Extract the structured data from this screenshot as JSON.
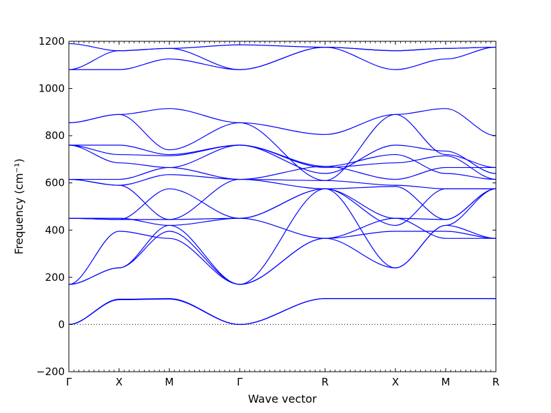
{
  "chart_data": {
    "type": "line",
    "xlabel": "Wave vector",
    "ylabel": "Frequency (cm⁻¹)",
    "ylim": [
      -200,
      1200
    ],
    "yticks": [
      -200,
      0,
      200,
      400,
      600,
      800,
      1000,
      1200
    ],
    "ytick_labels": [
      "−200",
      "0",
      "200",
      "400",
      "600",
      "800",
      "1000",
      "1200"
    ],
    "xlim": [
      0,
      8.5
    ],
    "xticks": [
      {
        "x": 0,
        "label": "Γ"
      },
      {
        "x": 1,
        "label": "X"
      },
      {
        "x": 2,
        "label": "M"
      },
      {
        "x": 3.4,
        "label": "Γ"
      },
      {
        "x": 5.1,
        "label": "R"
      },
      {
        "x": 6.5,
        "label": "X"
      },
      {
        "x": 7.5,
        "label": "M"
      },
      {
        "x": 8.5,
        "label": "R"
      }
    ],
    "zero_line": true,
    "line_color": "#0000ff",
    "series": [
      {
        "x": [
          0,
          1,
          2,
          3.4,
          5.1,
          6.5,
          7.5,
          8.5
        ],
        "values": [
          0,
          107,
          110,
          0,
          110,
          110,
          110,
          110
        ]
      },
      {
        "x": [
          0,
          1,
          2,
          3.4,
          5.1,
          6.5,
          7.5,
          8.5
        ],
        "values": [
          0,
          105,
          108,
          0,
          110,
          110,
          110,
          110
        ]
      },
      {
        "x": [
          0,
          1,
          2,
          3.4,
          5.1,
          6.5,
          7.5,
          8.5
        ],
        "values": [
          0,
          107,
          108,
          0,
          110,
          110,
          110,
          110
        ]
      },
      {
        "x": [
          0,
          1,
          2,
          3.4,
          5.1,
          6.5,
          7.5,
          8.5
        ],
        "values": [
          170,
          240,
          395,
          170,
          365,
          395,
          395,
          365
        ]
      },
      {
        "x": [
          0,
          1,
          2,
          3.4,
          5.1,
          6.5,
          7.5,
          8.5
        ],
        "values": [
          170,
          395,
          365,
          170,
          365,
          240,
          420,
          365
        ]
      },
      {
        "x": [
          0,
          1,
          2,
          3.4,
          5.1,
          6.5,
          7.5,
          8.5
        ],
        "values": [
          170,
          240,
          420,
          170,
          575,
          240,
          420,
          575
        ]
      },
      {
        "x": [
          0,
          1,
          2,
          3.4,
          5.1,
          6.5,
          7.5,
          8.5
        ],
        "values": [
          450,
          450,
          420,
          450,
          365,
          450,
          365,
          365
        ]
      },
      {
        "x": [
          0,
          1,
          2,
          3.4,
          5.1,
          6.5,
          7.5,
          8.5
        ],
        "values": [
          450,
          445,
          445,
          450,
          575,
          450,
          445,
          575
        ]
      },
      {
        "x": [
          0,
          1,
          2,
          3.4,
          5.1,
          6.5,
          7.5,
          8.5
        ],
        "values": [
          450,
          445,
          575,
          450,
          575,
          585,
          445,
          575
        ]
      },
      {
        "x": [
          0,
          1,
          2,
          3.4,
          5.1,
          6.5,
          7.5,
          8.5
        ],
        "values": [
          615,
          590,
          445,
          615,
          575,
          420,
          575,
          575
        ]
      },
      {
        "x": [
          0,
          1,
          2,
          3.4,
          5.1,
          6.5,
          7.5,
          8.5
        ],
        "values": [
          615,
          590,
          635,
          615,
          610,
          590,
          575,
          575
        ]
      },
      {
        "x": [
          0,
          1,
          2,
          3.4,
          5.1,
          6.5,
          7.5,
          8.5
        ],
        "values": [
          615,
          615,
          665,
          615,
          670,
          615,
          665,
          665
        ]
      },
      {
        "x": [
          0,
          1,
          2,
          3.4,
          5.1,
          6.5,
          7.5,
          8.5
        ],
        "values": [
          760,
          760,
          720,
          760,
          670,
          720,
          640,
          615
        ]
      },
      {
        "x": [
          0,
          1,
          2,
          3.4,
          5.1,
          6.5,
          7.5,
          8.5
        ],
        "values": [
          760,
          720,
          715,
          760,
          665,
          685,
          715,
          615
        ]
      },
      {
        "x": [
          0,
          1,
          2,
          3.4,
          5.1,
          6.5,
          7.5,
          8.5
        ],
        "values": [
          760,
          685,
          665,
          760,
          640,
          760,
          735,
          640
        ]
      },
      {
        "x": [
          0,
          1,
          2,
          3.4,
          5.1,
          6.5,
          7.5,
          8.5
        ],
        "values": [
          855,
          890,
          740,
          855,
          610,
          890,
          720,
          665
        ]
      },
      {
        "x": [
          0,
          1,
          2,
          3.4,
          5.1,
          6.5,
          7.5,
          8.5
        ],
        "values": [
          855,
          890,
          915,
          855,
          805,
          890,
          915,
          800
        ]
      },
      {
        "x": [
          0,
          1,
          2,
          3.4,
          5.1,
          6.5,
          7.5,
          8.5
        ],
        "values": [
          1080,
          1080,
          1125,
          1080,
          1175,
          1080,
          1125,
          1175
        ]
      },
      {
        "x": [
          0,
          1,
          2,
          3.4,
          5.1,
          6.5,
          7.5,
          8.5
        ],
        "values": [
          1080,
          1160,
          1170,
          1080,
          1175,
          1160,
          1170,
          1175
        ]
      },
      {
        "x": [
          0,
          1,
          2,
          3.4,
          5.1,
          6.5,
          7.5,
          8.5
        ],
        "values": [
          1190,
          1160,
          1170,
          1185,
          1175,
          1160,
          1170,
          1175
        ]
      }
    ]
  }
}
